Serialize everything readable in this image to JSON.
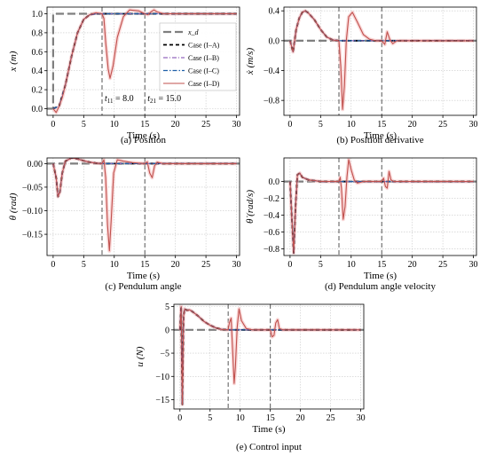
{
  "colors": {
    "ref": "#7f7f7f",
    "case_a": "#000000",
    "case_b": "#9467bd",
    "case_c": "#1f5fa8",
    "case_d": "#c0504d",
    "band": "#f4b6b6"
  },
  "legend": {
    "ref": "x_d",
    "case_a": "Case (I–A)",
    "case_b": "Case (I–B)",
    "case_c": "Case (I–C)",
    "case_d": "Case (I–D)"
  },
  "chart_data": [
    {
      "id": "a",
      "type": "line",
      "caption": "(a) Position",
      "xlabel": "Time (s)",
      "ylabel": "x (m)",
      "xlim": [
        -1,
        30.5
      ],
      "ylim": [
        -0.07,
        1.07
      ],
      "xticks": [
        0,
        5,
        10,
        15,
        20,
        25,
        30
      ],
      "yticks": [
        0.0,
        0.2,
        0.4,
        0.6,
        0.8,
        1.0
      ],
      "ytick_labels": [
        "0.0",
        "0.2",
        "0.4",
        "0.6",
        "0.8",
        "1.0"
      ],
      "grid": true,
      "legend_position": "center-right",
      "vlines": [
        8.0,
        15.0
      ],
      "annotations": [
        "t_11 = 8.0",
        "t_21 = 15.0"
      ],
      "reference": {
        "x": [
          -1,
          0,
          0,
          30.5
        ],
        "y": [
          0,
          0,
          1,
          1
        ]
      },
      "series": [
        {
          "key": "case_a",
          "x": [
            0,
            1,
            2,
            3,
            4,
            5,
            6,
            7,
            8,
            30
          ],
          "y": [
            0,
            0.03,
            0.25,
            0.55,
            0.8,
            0.94,
            0.99,
            1.0,
            1.0,
            1.0
          ]
        },
        {
          "key": "case_b",
          "x": [
            0,
            1,
            2,
            3,
            4,
            5,
            6,
            7,
            8,
            30
          ],
          "y": [
            0,
            0.03,
            0.25,
            0.55,
            0.8,
            0.94,
            0.99,
            1.0,
            1.0,
            1.0
          ]
        },
        {
          "key": "case_c",
          "x": [
            0,
            1,
            2,
            3,
            4,
            5,
            6,
            7,
            8,
            30
          ],
          "y": [
            0,
            0.03,
            0.25,
            0.55,
            0.8,
            0.94,
            0.99,
            1.0,
            1.0,
            1.0
          ]
        },
        {
          "key": "case_d",
          "x": [
            0,
            0.5,
            1,
            1.5,
            2,
            3,
            4,
            5,
            6,
            7,
            8,
            8.3,
            8.6,
            9.0,
            9.3,
            9.8,
            10.5,
            11.5,
            12.5,
            14,
            15,
            15.5,
            16,
            16.5,
            17,
            18,
            20,
            25,
            30
          ],
          "y": [
            0,
            -0.04,
            0.03,
            0.12,
            0.25,
            0.55,
            0.8,
            0.94,
            0.99,
            1.01,
            1.0,
            0.95,
            0.7,
            0.42,
            0.32,
            0.45,
            0.75,
            0.97,
            1.04,
            1.03,
            1.0,
            0.99,
            1.02,
            1.04,
            1.02,
            1.0,
            1.0,
            1.0,
            1.0
          ]
        }
      ]
    },
    {
      "id": "b",
      "type": "line",
      "caption": "(b) Position derivative",
      "xlabel": "Time (s)",
      "ylabel": "ẋ (m/s)",
      "xlim": [
        -1,
        30.5
      ],
      "ylim": [
        -1.0,
        0.45
      ],
      "xticks": [
        0,
        5,
        10,
        15,
        20,
        25,
        30
      ],
      "yticks": [
        0.4,
        0.0,
        -0.4,
        -0.8
      ],
      "ytick_labels": [
        "0.4",
        "0.0",
        "−0.4",
        "−0.8"
      ],
      "grid": true,
      "vlines": [
        8.0,
        15.0
      ],
      "reference": {
        "x": [
          -1,
          30.5
        ],
        "y": [
          0,
          0
        ]
      },
      "series": [
        {
          "key": "case_a",
          "x": [
            0,
            0.5,
            1,
            1.5,
            2,
            2.5,
            3,
            4,
            5,
            6,
            7,
            8,
            30
          ],
          "y": [
            0,
            -0.15,
            0.15,
            0.3,
            0.38,
            0.4,
            0.37,
            0.28,
            0.15,
            0.05,
            0.01,
            0,
            0
          ]
        },
        {
          "key": "case_b",
          "x": [
            0,
            0.5,
            1,
            1.5,
            2,
            2.5,
            3,
            4,
            5,
            6,
            7,
            8,
            30
          ],
          "y": [
            0,
            -0.15,
            0.15,
            0.3,
            0.38,
            0.4,
            0.37,
            0.28,
            0.15,
            0.05,
            0.01,
            0,
            0
          ]
        },
        {
          "key": "case_c",
          "x": [
            0,
            0.5,
            1,
            1.5,
            2,
            2.5,
            3,
            4,
            5,
            6,
            7,
            8,
            30
          ],
          "y": [
            0,
            -0.15,
            0.15,
            0.3,
            0.38,
            0.4,
            0.37,
            0.28,
            0.15,
            0.05,
            0.01,
            0,
            0
          ]
        },
        {
          "key": "case_d",
          "x": [
            0,
            0.5,
            1,
            1.5,
            2,
            2.5,
            3,
            4,
            5,
            6,
            7,
            8,
            8.3,
            8.6,
            8.9,
            9.2,
            9.6,
            10.2,
            11,
            12,
            13,
            14,
            15,
            15.5,
            15.9,
            16.3,
            16.8,
            17.5,
            20,
            25,
            30
          ],
          "y": [
            0,
            -0.15,
            0.15,
            0.3,
            0.38,
            0.4,
            0.37,
            0.28,
            0.15,
            0.05,
            0.01,
            0,
            -0.35,
            -0.92,
            -0.6,
            0,
            0.32,
            0.38,
            0.25,
            0.08,
            0.02,
            0,
            0,
            -0.05,
            0.12,
            0.02,
            -0.04,
            0,
            0,
            0,
            0
          ]
        }
      ]
    },
    {
      "id": "c",
      "type": "line",
      "caption": "(c) Pendulum angle",
      "xlabel": "Time (s)",
      "ylabel": "θ (rad)",
      "xlim": [
        -1,
        30.5
      ],
      "ylim": [
        -0.195,
        0.012
      ],
      "xticks": [
        0,
        5,
        10,
        15,
        20,
        25,
        30
      ],
      "yticks": [
        0.0,
        -0.05,
        -0.1,
        -0.15
      ],
      "ytick_labels": [
        "0.00",
        "−0.05",
        "−0.10",
        "−0.15"
      ],
      "grid": true,
      "vlines": [
        8.0,
        15.0
      ],
      "reference": {
        "x": [
          -1,
          30.5
        ],
        "y": [
          0,
          0
        ]
      },
      "series": [
        {
          "key": "case_a",
          "x": [
            0,
            0.5,
            0.8,
            1.1,
            1.5,
            2,
            3,
            4,
            5,
            6,
            7,
            8,
            30
          ],
          "y": [
            0,
            -0.03,
            -0.07,
            -0.06,
            -0.02,
            0.005,
            0.012,
            0.01,
            0.006,
            0.003,
            0.001,
            0,
            0
          ]
        },
        {
          "key": "case_b",
          "x": [
            0,
            0.5,
            0.8,
            1.1,
            1.5,
            2,
            3,
            4,
            5,
            6,
            7,
            8,
            30
          ],
          "y": [
            0,
            -0.03,
            -0.07,
            -0.06,
            -0.02,
            0.005,
            0.012,
            0.01,
            0.006,
            0.003,
            0.001,
            0,
            0
          ]
        },
        {
          "key": "case_c",
          "x": [
            0,
            0.5,
            0.8,
            1.1,
            1.5,
            2,
            3,
            4,
            5,
            6,
            7,
            8,
            30
          ],
          "y": [
            0,
            -0.03,
            -0.07,
            -0.06,
            -0.02,
            0.005,
            0.012,
            0.01,
            0.006,
            0.003,
            0.001,
            0,
            0
          ]
        },
        {
          "key": "case_d",
          "x": [
            0,
            0.5,
            0.8,
            1.1,
            1.5,
            2,
            3,
            4,
            5,
            6,
            7,
            8,
            8.3,
            8.6,
            8.9,
            9.2,
            9.5,
            9.9,
            10.5,
            11.5,
            13,
            15,
            15.4,
            15.8,
            16.2,
            16.6,
            17,
            18,
            20,
            30
          ],
          "y": [
            0,
            -0.03,
            -0.07,
            -0.06,
            -0.02,
            0.005,
            0.012,
            0.01,
            0.006,
            0.003,
            0.001,
            0,
            0.008,
            -0.03,
            -0.13,
            -0.185,
            -0.12,
            -0.02,
            0.008,
            0.005,
            0.002,
            0,
            0.004,
            -0.02,
            -0.03,
            -0.005,
            0.003,
            0,
            0,
            0
          ]
        }
      ]
    },
    {
      "id": "d",
      "type": "line",
      "caption": "(d) Pendulum angle velocity",
      "xlabel": "Time (s)",
      "ylabel": "θ̇ (rad/s)",
      "xlim": [
        -1,
        30.5
      ],
      "ylim": [
        -0.88,
        0.28
      ],
      "xticks": [
        0,
        5,
        10,
        15,
        20,
        25,
        30
      ],
      "yticks": [
        0.0,
        -0.2,
        -0.4,
        -0.6,
        -0.8
      ],
      "ytick_labels": [
        "0.0",
        "−0.2",
        "−0.4",
        "−0.6",
        "−0.8"
      ],
      "grid": true,
      "vlines": [
        8.0,
        15.0
      ],
      "reference": {
        "x": [
          -1,
          30.5
        ],
        "y": [
          0,
          0
        ]
      },
      "series": [
        {
          "key": "case_a",
          "x": [
            0,
            0.3,
            0.6,
            0.9,
            1.2,
            1.6,
            2,
            3,
            4,
            5,
            8,
            30
          ],
          "y": [
            0,
            -0.45,
            -0.85,
            -0.3,
            0.08,
            0.1,
            0.05,
            0.02,
            0.01,
            0,
            0,
            0
          ]
        },
        {
          "key": "case_b",
          "x": [
            0,
            0.3,
            0.6,
            0.9,
            1.2,
            1.6,
            2,
            3,
            4,
            5,
            8,
            30
          ],
          "y": [
            0,
            -0.45,
            -0.85,
            -0.3,
            0.08,
            0.1,
            0.05,
            0.02,
            0.01,
            0,
            0,
            0
          ]
        },
        {
          "key": "case_c",
          "x": [
            0,
            0.3,
            0.6,
            0.9,
            1.2,
            1.6,
            2,
            3,
            4,
            5,
            8,
            30
          ],
          "y": [
            0,
            -0.45,
            -0.85,
            -0.3,
            0.08,
            0.1,
            0.05,
            0.02,
            0.01,
            0,
            0,
            0
          ]
        },
        {
          "key": "case_d",
          "x": [
            0,
            0.3,
            0.6,
            0.9,
            1.2,
            1.6,
            2,
            3,
            4,
            5,
            8,
            8.2,
            8.4,
            8.7,
            9.0,
            9.3,
            9.6,
            10.0,
            10.5,
            11,
            12,
            15,
            15.3,
            15.6,
            15.9,
            16.2,
            16.5,
            17,
            20,
            30
          ],
          "y": [
            0,
            -0.45,
            -0.85,
            -0.3,
            0.08,
            0.1,
            0.05,
            0.02,
            0.01,
            0,
            0,
            0.05,
            -0.08,
            -0.45,
            -0.3,
            0.05,
            0.26,
            0.14,
            0.02,
            -0.02,
            0,
            0,
            0.04,
            -0.06,
            -0.08,
            0.12,
            0.02,
            0,
            0,
            0
          ]
        }
      ]
    },
    {
      "id": "e",
      "type": "line",
      "caption": "(e) Control input",
      "xlabel": "Time (s)",
      "ylabel": "u (N)",
      "xlim": [
        -1,
        30.5
      ],
      "ylim": [
        -17,
        5.5
      ],
      "xticks": [
        0,
        5,
        10,
        15,
        20,
        25,
        30
      ],
      "yticks": [
        5,
        0,
        -5,
        -10,
        -15
      ],
      "ytick_labels": [
        "5",
        "0",
        "−5",
        "−10",
        "−15"
      ],
      "grid": true,
      "vlines": [
        8.0,
        15.0
      ],
      "reference": {
        "x": [
          -1,
          30.5
        ],
        "y": [
          0,
          0
        ]
      },
      "series": [
        {
          "key": "case_a",
          "x": [
            0,
            0.2,
            0.4,
            0.6,
            0.8,
            1.2,
            1.6,
            2,
            3,
            4,
            5,
            6,
            7,
            8,
            30
          ],
          "y": [
            0,
            5,
            -16,
            3,
            4.5,
            4.2,
            4.3,
            4,
            3,
            1.8,
            1.0,
            0.4,
            0.1,
            0,
            0
          ]
        },
        {
          "key": "case_b",
          "x": [
            0,
            0.2,
            0.4,
            0.6,
            0.8,
            1.2,
            1.6,
            2,
            3,
            4,
            5,
            6,
            7,
            8,
            30
          ],
          "y": [
            0,
            5,
            -16,
            3,
            4.5,
            4.2,
            4.3,
            4,
            3,
            1.8,
            1.0,
            0.4,
            0.1,
            0,
            0
          ]
        },
        {
          "key": "case_c",
          "x": [
            0,
            0.2,
            0.4,
            0.6,
            0.8,
            1.2,
            1.6,
            2,
            3,
            4,
            5,
            6,
            7,
            8,
            30
          ],
          "y": [
            0,
            5,
            -16,
            3,
            4.5,
            4.2,
            4.3,
            4,
            3,
            1.8,
            1.0,
            0.4,
            0.1,
            0,
            0
          ]
        },
        {
          "key": "case_d",
          "x": [
            0,
            0.2,
            0.4,
            0.6,
            0.8,
            1.2,
            1.6,
            2,
            3,
            4,
            5,
            6,
            7,
            8,
            8.2,
            8.5,
            8.8,
            9.0,
            9.2,
            9.5,
            9.8,
            10.2,
            11,
            12,
            15,
            15.3,
            15.6,
            15.9,
            16.2,
            16.5,
            17,
            20,
            30
          ],
          "y": [
            0,
            5,
            -16,
            3,
            4.5,
            4.2,
            4.3,
            4,
            3,
            1.8,
            1.0,
            0.4,
            0.1,
            0,
            1.5,
            2.5,
            -6,
            -11.5,
            -8,
            0.5,
            4.5,
            2,
            0.3,
            0,
            0,
            -1.5,
            -1.2,
            1.5,
            2.2,
            0.3,
            0,
            0,
            0
          ]
        }
      ]
    }
  ]
}
